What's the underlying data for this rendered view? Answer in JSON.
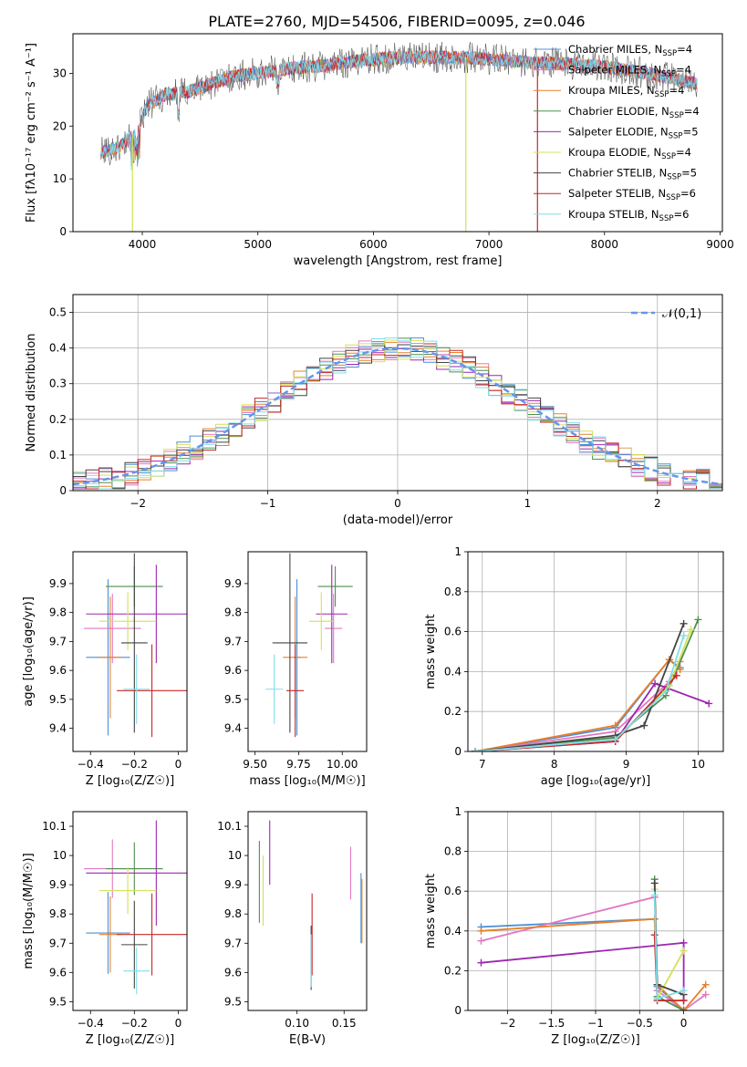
{
  "title": "PLATE=2760, MJD=54506, FIBERID=0095, z=0.046",
  "colors": {
    "Chabrier MILES": "#4c8fd6",
    "Salpeter MILES": "#e377c2",
    "Kroupa MILES": "#e8802a",
    "Chabrier ELODIE": "#4f8f4f",
    "Salpeter ELODIE": "#9c27b0",
    "Kroupa ELODIE": "#d4e157",
    "Chabrier STELIB": "#444444",
    "Salpeter STELIB": "#c62828",
    "Kroupa STELIB": "#80deea",
    "normal": "#6495ed",
    "grid": "#b0b0b0"
  },
  "chart_data": [
    {
      "id": "spectrum",
      "type": "line",
      "xlabel": "wavelength [Angstrom, rest frame]",
      "ylabel": "Flux [fλ10⁻¹⁷ erg cm⁻² s⁻¹ A⁻¹]",
      "xlim": [
        3400,
        9020
      ],
      "ylim": [
        0,
        37.5
      ],
      "xticks": [
        4000,
        5000,
        6000,
        7000,
        8000,
        9000
      ],
      "yticks": [
        0,
        10,
        20,
        30
      ],
      "grid": false,
      "legend_position": "right",
      "legend": [
        {
          "label": "Chabrier MILES, N",
          "sub": "SSP",
          "tail": "=4",
          "model": "Chabrier MILES"
        },
        {
          "label": "Salpeter MILES, N",
          "sub": "SSP",
          "tail": "=4",
          "model": "Salpeter MILES"
        },
        {
          "label": "Kroupa MILES, N",
          "sub": "SSP",
          "tail": "=4",
          "model": "Kroupa MILES"
        },
        {
          "label": "Chabrier ELODIE, N",
          "sub": "SSP",
          "tail": "=4",
          "model": "Chabrier ELODIE"
        },
        {
          "label": "Salpeter ELODIE, N",
          "sub": "SSP",
          "tail": "=5",
          "model": "Salpeter ELODIE"
        },
        {
          "label": "Kroupa ELODIE, N",
          "sub": "SSP",
          "tail": "=4",
          "model": "Kroupa ELODIE"
        },
        {
          "label": "Chabrier STELIB, N",
          "sub": "SSP",
          "tail": "=5",
          "model": "Chabrier STELIB"
        },
        {
          "label": "Salpeter STELIB, N",
          "sub": "SSP",
          "tail": "=6",
          "model": "Salpeter STELIB"
        },
        {
          "label": "Kroupa STELIB, N",
          "sub": "SSP",
          "tail": "=6",
          "model": "Kroupa STELIB"
        }
      ],
      "continuum": [
        [
          3640,
          15
        ],
        [
          3800,
          16
        ],
        [
          3950,
          19
        ],
        [
          4050,
          24
        ],
        [
          4200,
          26
        ],
        [
          4400,
          26.5
        ],
        [
          4600,
          28
        ],
        [
          4800,
          29.5
        ],
        [
          5000,
          30
        ],
        [
          5300,
          31
        ],
        [
          5600,
          31.5
        ],
        [
          5900,
          32.5
        ],
        [
          6200,
          33
        ],
        [
          6500,
          33
        ],
        [
          6800,
          33
        ],
        [
          7100,
          32.5
        ],
        [
          7400,
          32
        ],
        [
          7700,
          31.8
        ],
        [
          8000,
          31.2
        ],
        [
          8300,
          30.3
        ],
        [
          8600,
          29
        ],
        [
          8800,
          28
        ]
      ],
      "drops": [
        {
          "model": "Kroupa ELODIE",
          "from": 3900,
          "to": 3930,
          "x": 3915
        },
        {
          "model": "Kroupa ELODIE",
          "from": 6790,
          "to": 6810,
          "x": 6800
        },
        {
          "model": "Salpeter STELIB",
          "from": 7400,
          "to": 7450,
          "x": 7420
        }
      ]
    },
    {
      "id": "residuals",
      "type": "bar",
      "xlabel": "(data-model)/error",
      "ylabel": "Normed distribution",
      "xlim": [
        -2.5,
        2.5
      ],
      "ylim": [
        0,
        0.55
      ],
      "xticks": [
        -2,
        -1,
        0,
        1,
        2
      ],
      "yticks": [
        0.0,
        0.1,
        0.2,
        0.3,
        0.4,
        0.5
      ],
      "grid": true,
      "bin_width": 0.1,
      "legend_position": "top-right",
      "legend": [
        {
          "label": "𝒩(0,1)",
          "style": "dashed"
        }
      ],
      "series_models": [
        "Chabrier MILES",
        "Salpeter MILES",
        "Kroupa MILES",
        "Chabrier ELODIE",
        "Salpeter ELODIE",
        "Kroupa ELODIE",
        "Chabrier STELIB",
        "Salpeter STELIB",
        "Kroupa STELIB"
      ]
    },
    {
      "id": "age-vs-Z",
      "type": "scatter",
      "xlabel": "Z [log₁₀(Z/Z☉)]",
      "ylabel": "age  [log₁₀(age/yr)]",
      "xlim": [
        -0.48,
        0.04
      ],
      "ylim": [
        9.32,
        10.01
      ],
      "xticks": [
        -0.4,
        -0.2,
        0.0
      ],
      "yticks": [
        9.4,
        9.5,
        9.6,
        9.7,
        9.8,
        9.9
      ],
      "grid": false,
      "points": [
        {
          "model": "Chabrier MILES",
          "x": -0.32,
          "y": 9.645,
          "xerr": 0.1,
          "yerr": 0.27
        },
        {
          "model": "Salpeter MILES",
          "x": -0.3,
          "y": 9.745,
          "xerr": 0.13,
          "yerr": 0.12
        },
        {
          "model": "Kroupa MILES",
          "x": -0.31,
          "y": 9.645,
          "xerr": 0.05,
          "yerr": 0.21
        },
        {
          "model": "Chabrier ELODIE",
          "x": -0.2,
          "y": 9.89,
          "xerr": 0.13,
          "yerr": 0.07
        },
        {
          "model": "Salpeter ELODIE",
          "x": -0.1,
          "y": 9.795,
          "xerr": 0.32,
          "yerr": 0.17
        },
        {
          "model": "Kroupa ELODIE",
          "x": -0.23,
          "y": 9.77,
          "xerr": 0.13,
          "yerr": 0.1
        },
        {
          "model": "Chabrier STELIB",
          "x": -0.2,
          "y": 9.695,
          "xerr": 0.06,
          "yerr": 0.31
        },
        {
          "model": "Salpeter STELIB",
          "x": -0.12,
          "y": 9.53,
          "xerr": 0.16,
          "yerr": 0.16
        },
        {
          "model": "Kroupa STELIB",
          "x": -0.19,
          "y": 9.535,
          "xerr": 0.06,
          "yerr": 0.12
        }
      ]
    },
    {
      "id": "age-vs-mass",
      "type": "scatter",
      "xlabel": "mass [log₁₀(M/M☉)]",
      "ylabel": "",
      "xlim": [
        9.46,
        10.14
      ],
      "ylim": [
        9.32,
        10.01
      ],
      "xticks": [
        9.5,
        9.75,
        10.0
      ],
      "xtick_labels": [
        "9.50",
        "9.75",
        "10.00"
      ],
      "yticks": [
        9.4,
        9.5,
        9.6,
        9.7,
        9.8,
        9.9
      ],
      "grid": false,
      "points": [
        {
          "model": "Chabrier MILES",
          "x": 9.74,
          "y": 9.645,
          "xerr": 0.02,
          "yerr": 0.27
        },
        {
          "model": "Salpeter MILES",
          "x": 9.95,
          "y": 9.745,
          "xerr": 0.05,
          "yerr": 0.12
        },
        {
          "model": "Kroupa MILES",
          "x": 9.73,
          "y": 9.645,
          "xerr": 0.07,
          "yerr": 0.21
        },
        {
          "model": "Chabrier ELODIE",
          "x": 9.96,
          "y": 9.89,
          "xerr": 0.1,
          "yerr": 0.07
        },
        {
          "model": "Salpeter ELODIE",
          "x": 9.94,
          "y": 9.795,
          "xerr": 0.09,
          "yerr": 0.17
        },
        {
          "model": "Kroupa ELODIE",
          "x": 9.88,
          "y": 9.77,
          "xerr": 0.07,
          "yerr": 0.1
        },
        {
          "model": "Chabrier STELIB",
          "x": 9.7,
          "y": 9.695,
          "xerr": 0.1,
          "yerr": 0.31
        },
        {
          "model": "Salpeter STELIB",
          "x": 9.73,
          "y": 9.53,
          "xerr": 0.05,
          "yerr": 0.16
        },
        {
          "model": "Kroupa STELIB",
          "x": 9.61,
          "y": 9.535,
          "xerr": 0.05,
          "yerr": 0.12
        }
      ]
    },
    {
      "id": "massweight-vs-age",
      "type": "line",
      "xlabel": "age  [log₁₀(age/yr)]",
      "ylabel": "mass weight",
      "xlim": [
        6.8,
        10.35
      ],
      "ylim": [
        0,
        1.0
      ],
      "xticks": [
        7,
        8,
        9,
        10
      ],
      "yticks": [
        0.0,
        0.2,
        0.4,
        0.6,
        0.8,
        1.0
      ],
      "grid": true,
      "series": [
        {
          "model": "Chabrier MILES",
          "x": [
            6.9,
            8.85,
            9.6,
            9.75
          ],
          "y": [
            0.0,
            0.12,
            0.46,
            0.42
          ]
        },
        {
          "model": "Salpeter MILES",
          "x": [
            6.9,
            8.85,
            9.6,
            9.75
          ],
          "y": [
            0.0,
            0.1,
            0.35,
            0.45
          ]
        },
        {
          "model": "Kroupa MILES",
          "x": [
            6.9,
            8.85,
            9.6,
            9.75
          ],
          "y": [
            0.0,
            0.13,
            0.46,
            0.41
          ]
        },
        {
          "model": "Chabrier ELODIE",
          "x": [
            6.9,
            8.85,
            9.55,
            10.0
          ],
          "y": [
            0.0,
            0.07,
            0.28,
            0.66
          ]
        },
        {
          "model": "Salpeter ELODIE",
          "x": [
            6.9,
            8.85,
            9.4,
            10.15
          ],
          "y": [
            0.0,
            0.05,
            0.34,
            0.24
          ]
        },
        {
          "model": "Kroupa ELODIE",
          "x": [
            6.9,
            8.85,
            9.6,
            9.9
          ],
          "y": [
            0.0,
            0.06,
            0.33,
            0.61
          ]
        },
        {
          "model": "Chabrier STELIB",
          "x": [
            6.9,
            8.85,
            9.25,
            9.8
          ],
          "y": [
            0.0,
            0.08,
            0.13,
            0.64
          ]
        },
        {
          "model": "Salpeter STELIB",
          "x": [
            6.9,
            8.85,
            9.7
          ],
          "y": [
            0.0,
            0.05,
            0.38
          ]
        },
        {
          "model": "Kroupa STELIB",
          "x": [
            6.9,
            8.85,
            9.55,
            9.8
          ],
          "y": [
            0.0,
            0.06,
            0.3,
            0.58
          ]
        }
      ]
    },
    {
      "id": "mass-vs-Z",
      "type": "scatter",
      "xlabel": "Z [log₁₀(Z/Z☉)]",
      "ylabel": "mass [log₁₀(M/M☉)]",
      "xlim": [
        -0.48,
        0.04
      ],
      "ylim": [
        9.47,
        10.15
      ],
      "xticks": [
        -0.4,
        -0.2,
        0.0
      ],
      "yticks": [
        9.5,
        9.6,
        9.7,
        9.8,
        9.9,
        10.0,
        10.1
      ],
      "grid": false,
      "points": [
        {
          "model": "Chabrier MILES",
          "x": -0.32,
          "y": 9.735,
          "xerr": 0.1,
          "yerr": 0.14
        },
        {
          "model": "Salpeter MILES",
          "x": -0.3,
          "y": 9.955,
          "xerr": 0.13,
          "yerr": 0.1
        },
        {
          "model": "Kroupa MILES",
          "x": -0.31,
          "y": 9.73,
          "xerr": 0.05,
          "yerr": 0.13
        },
        {
          "model": "Chabrier ELODIE",
          "x": -0.2,
          "y": 9.955,
          "xerr": 0.13,
          "yerr": 0.09
        },
        {
          "model": "Salpeter ELODIE",
          "x": -0.1,
          "y": 9.94,
          "xerr": 0.32,
          "yerr": 0.18
        },
        {
          "model": "Kroupa ELODIE",
          "x": -0.23,
          "y": 9.88,
          "xerr": 0.13,
          "yerr": 0.08
        },
        {
          "model": "Chabrier STELIB",
          "x": -0.2,
          "y": 9.695,
          "xerr": 0.06,
          "yerr": 0.15
        },
        {
          "model": "Salpeter STELIB",
          "x": -0.12,
          "y": 9.73,
          "xerr": 0.16,
          "yerr": 0.14
        },
        {
          "model": "Kroupa STELIB",
          "x": -0.19,
          "y": 9.605,
          "xerr": 0.06,
          "yerr": 0.08
        }
      ]
    },
    {
      "id": "mass-vs-EBV",
      "type": "scatter",
      "xlabel": "E(B-V)",
      "ylabel": "",
      "xlim": [
        0.048,
        0.174
      ],
      "ylim": [
        9.47,
        10.15
      ],
      "xticks": [
        0.1,
        0.15
      ],
      "xtick_labels": [
        "0.10",
        "0.15"
      ],
      "yticks": [
        9.5,
        9.6,
        9.7,
        9.8,
        9.9,
        10.0,
        10.1
      ],
      "grid": false,
      "points": [
        {
          "model": "Chabrier MILES",
          "x": 0.168,
          "y": 9.82,
          "xerr": 0.0,
          "yerr": 0.12
        },
        {
          "model": "Salpeter MILES",
          "x": 0.157,
          "y": 9.94,
          "xerr": 0.0,
          "yerr": 0.09
        },
        {
          "model": "Kroupa MILES",
          "x": 0.169,
          "y": 9.81,
          "xerr": 0.0,
          "yerr": 0.11
        },
        {
          "model": "Chabrier ELODIE",
          "x": 0.06,
          "y": 9.91,
          "xerr": 0.0,
          "yerr": 0.14
        },
        {
          "model": "Salpeter ELODIE",
          "x": 0.071,
          "y": 10.01,
          "xerr": 0.0,
          "yerr": 0.11
        },
        {
          "model": "Kroupa ELODIE",
          "x": 0.064,
          "y": 9.88,
          "xerr": 0.0,
          "yerr": 0.12
        },
        {
          "model": "Chabrier STELIB",
          "x": 0.115,
          "y": 9.65,
          "xerr": 0.0,
          "yerr": 0.11
        },
        {
          "model": "Salpeter STELIB",
          "x": 0.116,
          "y": 9.73,
          "xerr": 0.0,
          "yerr": 0.14
        },
        {
          "model": "Kroupa STELIB",
          "x": 0.115,
          "y": 9.64,
          "xerr": 0.0,
          "yerr": 0.09
        }
      ]
    },
    {
      "id": "massweight-vs-Z",
      "type": "line",
      "xlabel": "Z [log₁₀(Z/Z☉)]",
      "ylabel": "mass weight",
      "xlim": [
        -2.45,
        0.45
      ],
      "ylim": [
        0,
        1.0
      ],
      "xticks": [
        -2.0,
        -1.5,
        -1.0,
        -0.5,
        0.0
      ],
      "yticks": [
        0.0,
        0.2,
        0.4,
        0.6,
        0.8,
        1.0
      ],
      "grid": true,
      "series": [
        {
          "model": "Chabrier MILES",
          "x": [
            -2.3,
            -0.33,
            -0.3,
            0.0
          ],
          "y": [
            0.42,
            0.46,
            0.12,
            0.0
          ]
        },
        {
          "model": "Salpeter MILES",
          "x": [
            -2.3,
            -0.33,
            -0.3,
            0.0,
            0.25
          ],
          "y": [
            0.35,
            0.57,
            0.1,
            0.0,
            0.08
          ]
        },
        {
          "model": "Kroupa MILES",
          "x": [
            -2.3,
            -0.33,
            -0.3,
            0.0,
            0.25
          ],
          "y": [
            0.4,
            0.46,
            0.13,
            0.0,
            0.13
          ]
        },
        {
          "model": "Chabrier ELODIE",
          "x": [
            -0.33,
            -0.3,
            0.0
          ],
          "y": [
            0.66,
            0.07,
            0.0
          ]
        },
        {
          "model": "Salpeter ELODIE",
          "x": [
            -2.3,
            0.0,
            0.0
          ],
          "y": [
            0.24,
            0.34,
            0.05
          ]
        },
        {
          "model": "Kroupa ELODIE",
          "x": [
            -0.33,
            -0.3,
            0.0
          ],
          "y": [
            0.61,
            0.06,
            0.3
          ]
        },
        {
          "model": "Chabrier STELIB",
          "x": [
            -0.33,
            -0.3,
            0.0
          ],
          "y": [
            0.64,
            0.13,
            0.08
          ]
        },
        {
          "model": "Salpeter STELIB",
          "x": [
            -0.33,
            -0.3,
            0.0
          ],
          "y": [
            0.38,
            0.05,
            0.05
          ]
        },
        {
          "model": "Kroupa STELIB",
          "x": [
            -0.33,
            -0.3,
            0.0
          ],
          "y": [
            0.58,
            0.06,
            0.1
          ]
        }
      ]
    }
  ]
}
